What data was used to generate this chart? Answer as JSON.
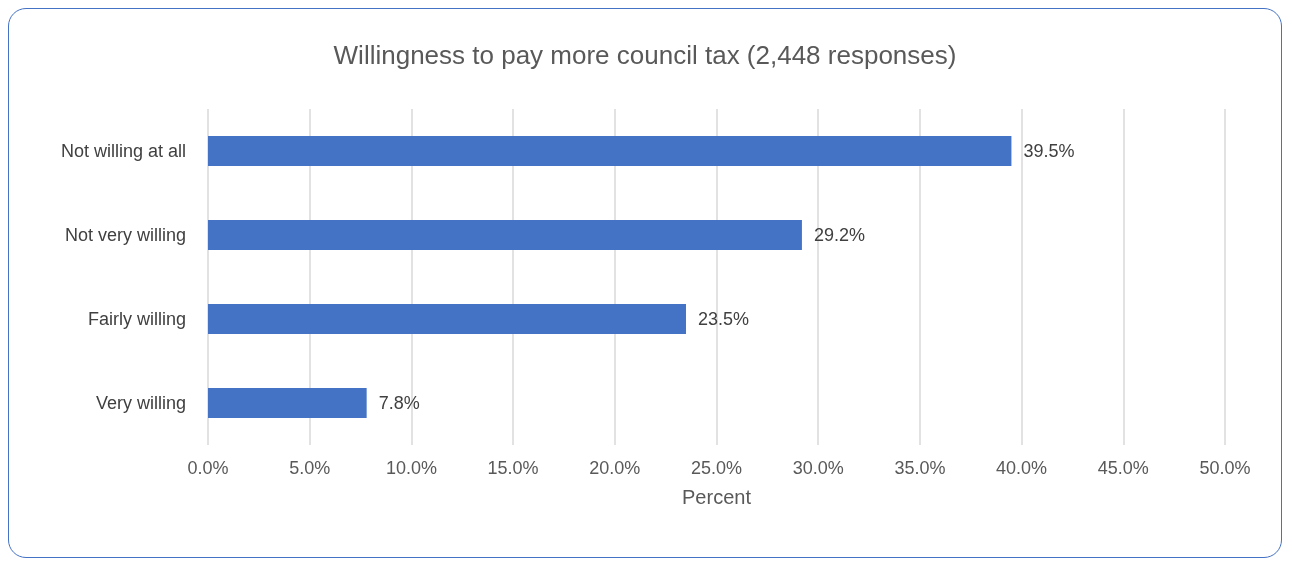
{
  "chart_data": {
    "type": "bar",
    "orientation": "horizontal",
    "title": "Willingness to pay more council tax (2,448 responses)",
    "xlabel": "Percent",
    "categories": [
      "Not willing at all",
      "Not very willing",
      "Fairly willing",
      "Very willing"
    ],
    "values": [
      39.5,
      29.2,
      23.5,
      7.8
    ],
    "value_labels": [
      "39.5%",
      "29.2%",
      "23.5%",
      "7.8%"
    ],
    "color": "#4472c4",
    "xlim": [
      0,
      50
    ],
    "xticks": [
      {
        "value": 0,
        "label": "0.0%"
      },
      {
        "value": 5,
        "label": "5.0%"
      },
      {
        "value": 10,
        "label": "10.0%"
      },
      {
        "value": 15,
        "label": "15.0%"
      },
      {
        "value": 20,
        "label": "20.0%"
      },
      {
        "value": 25,
        "label": "25.0%"
      },
      {
        "value": 30,
        "label": "30.0%"
      },
      {
        "value": 35,
        "label": "35.0%"
      },
      {
        "value": 40,
        "label": "40.0%"
      },
      {
        "value": 45,
        "label": "45.0%"
      },
      {
        "value": 50,
        "label": "50.0%"
      }
    ],
    "grid": "x"
  }
}
